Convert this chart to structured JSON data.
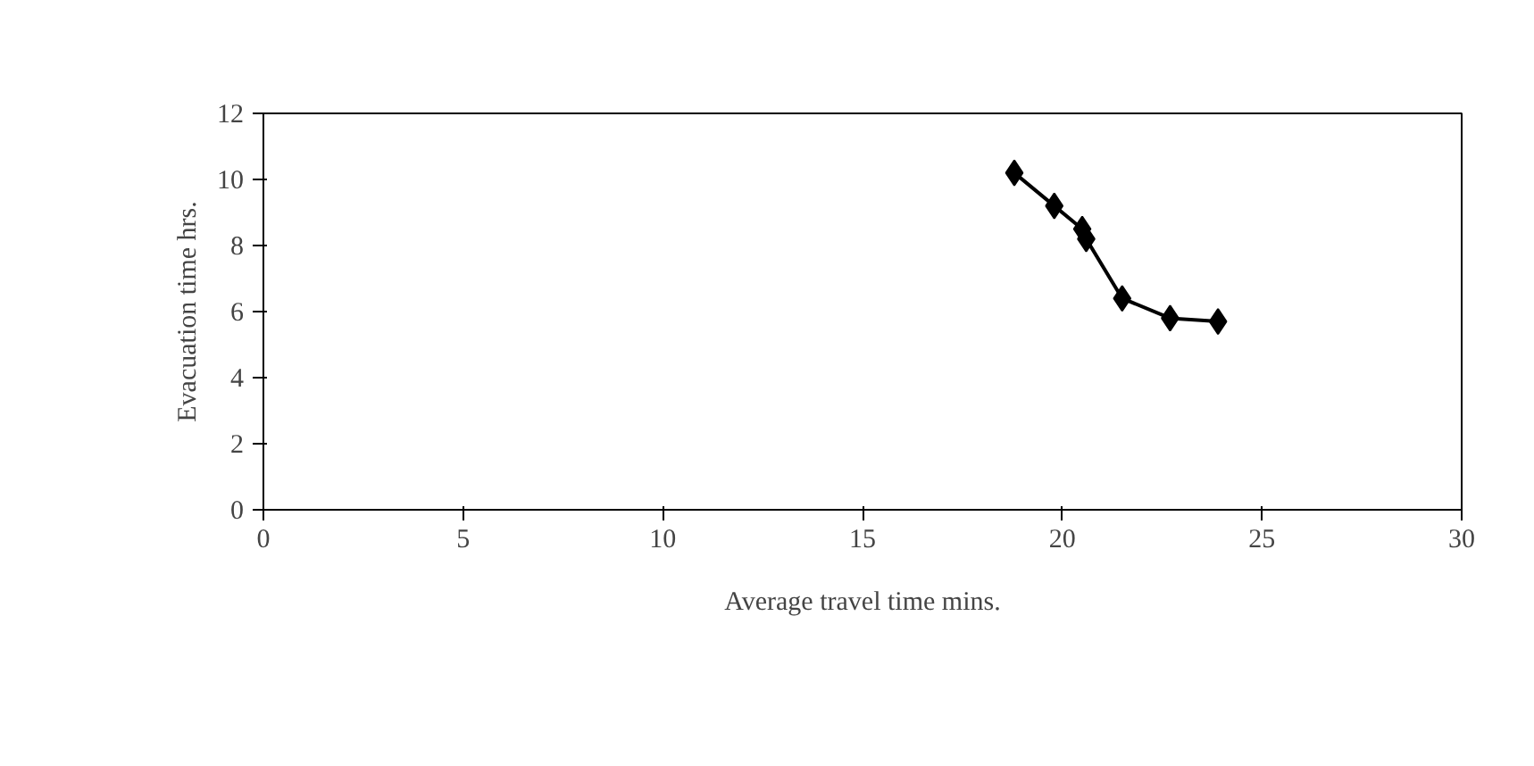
{
  "chart_data": {
    "type": "line",
    "xlabel": "Average travel time mins.",
    "ylabel": "Evacuation time hrs.",
    "x": [
      18.8,
      19.8,
      20.5,
      20.6,
      21.5,
      22.7,
      23.9
    ],
    "series": [
      {
        "color": "#000000",
        "values": [
          10.2,
          9.2,
          8.5,
          8.2,
          6.4,
          5.8,
          5.7
        ]
      }
    ],
    "xlim": [
      0,
      30
    ],
    "ylim": [
      0,
      12
    ],
    "xticks": [
      0,
      5,
      10,
      15,
      20,
      25,
      30
    ],
    "yticks": [
      0,
      2,
      4,
      6,
      8,
      10,
      12
    ],
    "marker": "diamond",
    "line_style": "solid"
  }
}
